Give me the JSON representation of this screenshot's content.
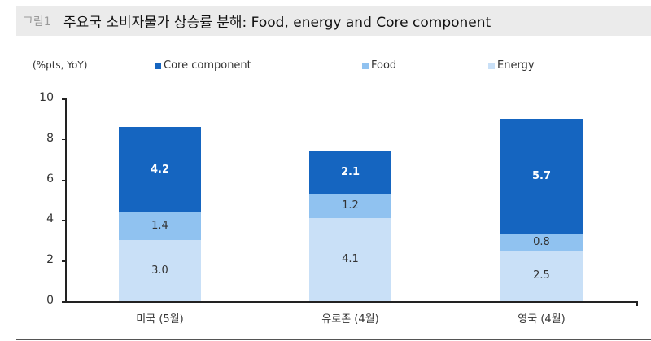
{
  "header": {
    "figure_label": "그림1",
    "title": "주요국 소비자물가 상승률 분해: Food, energy and Core component"
  },
  "colors": {
    "core": "#1565c0",
    "food": "#90c2f0",
    "energy": "#c9e0f7",
    "title_bg": "#ebebeb"
  },
  "chart_data": {
    "type": "bar",
    "stacked": true,
    "title": "주요국 소비자물가 상승률 분해: Food, energy and Core component",
    "ylabel": "(%pts, YoY)",
    "xlabel": "",
    "ylim": [
      0,
      10
    ],
    "yticks": [
      "0",
      "2",
      "4",
      "6",
      "8",
      "10"
    ],
    "categories": [
      "미국 (5월)",
      "유로존 (4월)",
      "영국 (4월)"
    ],
    "series": [
      {
        "name": "Energy",
        "values": [
          3.0,
          4.1,
          2.5
        ],
        "labels": [
          "3.0",
          "4.1",
          "2.5"
        ]
      },
      {
        "name": "Food",
        "values": [
          1.4,
          1.2,
          0.8
        ],
        "labels": [
          "1.4",
          "1.2",
          "0.8"
        ]
      },
      {
        "name": "Core component",
        "values": [
          4.2,
          2.1,
          5.7
        ],
        "labels": [
          "4.2",
          "2.1",
          "5.7"
        ]
      }
    ],
    "legend": [
      "Core component",
      "Food",
      "Energy"
    ],
    "legend_position": "top",
    "grid": false
  }
}
